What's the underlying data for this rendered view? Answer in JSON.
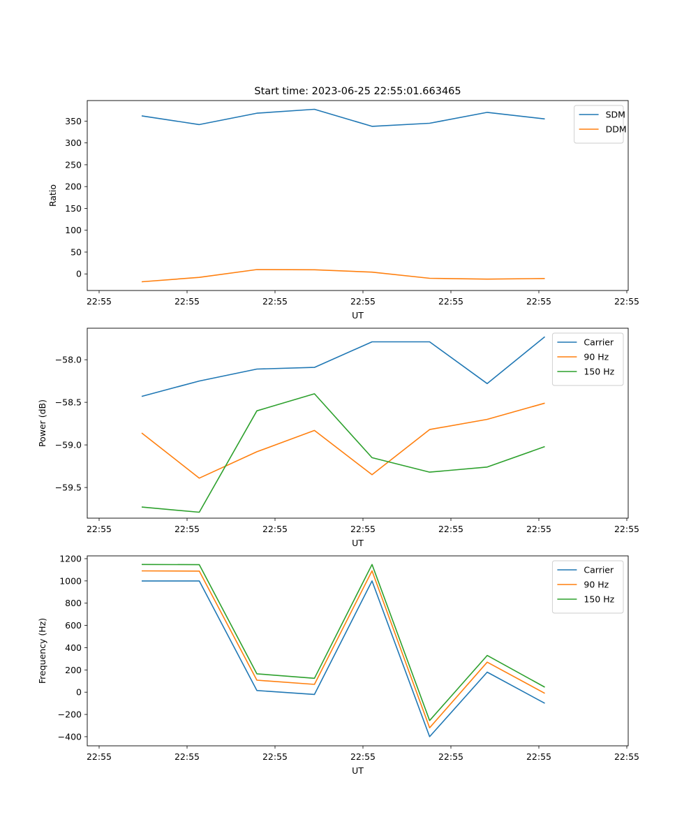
{
  "colors": {
    "c0": "#1f77b4",
    "c1": "#ff7f0e",
    "c2": "#2ca02c"
  },
  "chart_data": [
    {
      "type": "line",
      "title": "Start time: 2023-06-25 22:55:01.663465",
      "xlabel": "UT",
      "ylabel": "Ratio",
      "xticklabels": [
        "22:55",
        "22:55",
        "22:55",
        "22:55",
        "22:55",
        "22:55",
        "22:55"
      ],
      "yticks": [
        0,
        50,
        100,
        150,
        200,
        250,
        300,
        350
      ],
      "ylim": [
        -38,
        397
      ],
      "legend": "top-right",
      "series": [
        {
          "name": "SDM",
          "values": [
            362,
            342,
            368,
            377,
            338,
            345,
            370,
            355
          ]
        },
        {
          "name": "DDM",
          "values": [
            -18,
            -8,
            10,
            9.5,
            4,
            -10,
            -12,
            -10.5
          ]
        }
      ]
    },
    {
      "type": "line",
      "title": "",
      "xlabel": "UT",
      "ylabel": "Power (dB)",
      "xticklabels": [
        "22:55",
        "22:55",
        "22:55",
        "22:55",
        "22:55",
        "22:55",
        "22:55"
      ],
      "yticks": [
        -58.0,
        -58.5,
        -59.0,
        -59.5
      ],
      "yticklabels": [
        "−58.0",
        "−58.5",
        "−59.0",
        "−59.5"
      ],
      "ylim": [
        -59.86,
        -57.63
      ],
      "legend": "top-right",
      "series": [
        {
          "name": "Carrier",
          "values": [
            -58.43,
            -58.25,
            -58.11,
            -58.09,
            -57.79,
            -57.79,
            -58.28,
            -57.73
          ]
        },
        {
          "name": "90 Hz",
          "values": [
            -58.86,
            -59.39,
            -59.08,
            -58.83,
            -59.35,
            -58.82,
            -58.7,
            -58.51
          ]
        },
        {
          "name": "150 Hz",
          "values": [
            -59.73,
            -59.79,
            -58.6,
            -58.4,
            -59.15,
            -59.32,
            -59.26,
            -59.02
          ]
        }
      ]
    },
    {
      "type": "line",
      "title": "",
      "xlabel": "UT",
      "ylabel": "Frequency (Hz)",
      "xticklabels": [
        "22:55",
        "22:55",
        "22:55",
        "22:55",
        "22:55",
        "22:55",
        "22:55"
      ],
      "yticks": [
        -400,
        -200,
        0,
        200,
        400,
        600,
        800,
        1000,
        1200
      ],
      "yticklabels": [
        "−400",
        "−200",
        "0",
        "200",
        "400",
        "600",
        "800",
        "1000",
        "1200"
      ],
      "ylim": [
        -482,
        1225
      ],
      "legend": "top-right",
      "series": [
        {
          "name": "Carrier",
          "values": [
            1000,
            1000,
            15,
            -20,
            1000,
            -400,
            180,
            -100
          ]
        },
        {
          "name": "90 Hz",
          "values": [
            1090,
            1088,
            108,
            70,
            1090,
            -320,
            270,
            -10
          ]
        },
        {
          "name": "150 Hz",
          "values": [
            1148,
            1146,
            165,
            125,
            1148,
            -255,
            330,
            45
          ]
        }
      ]
    }
  ]
}
